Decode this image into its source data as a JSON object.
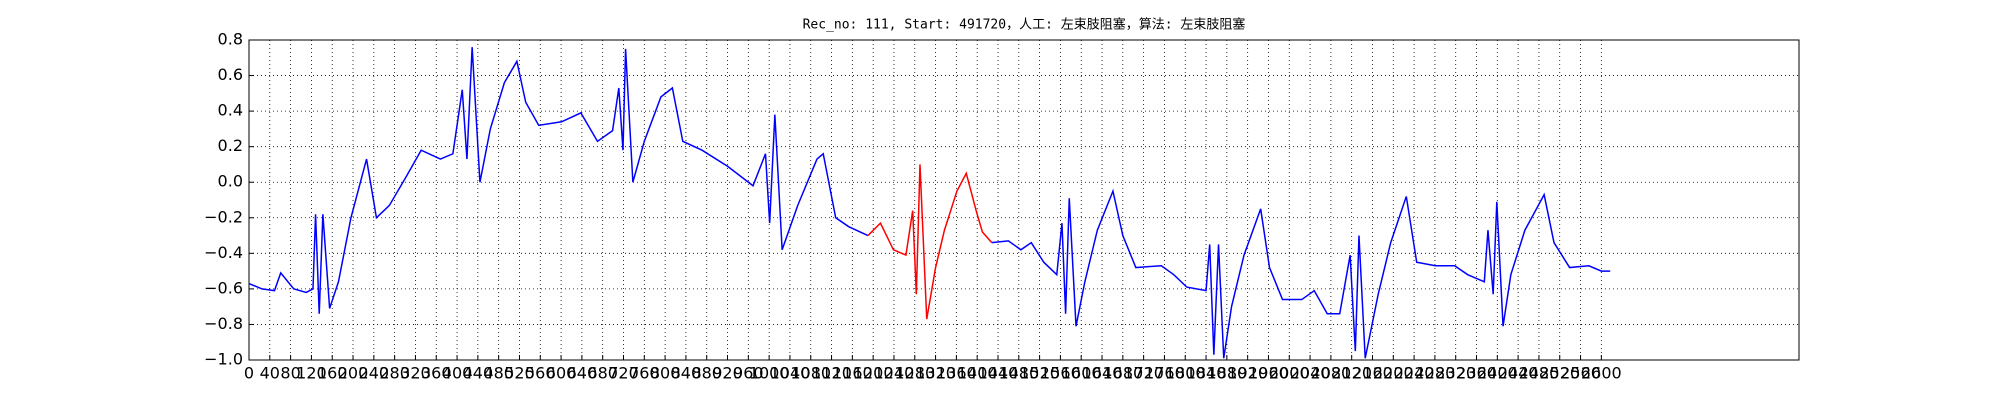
{
  "chart_data": {
    "type": "line",
    "title": "Rec_no: 111, Start: 491720，人工: 左束肢阻塞，算法: 左束肢阻塞",
    "xlim": [
      0,
      2980
    ],
    "ylim": [
      -1,
      0.8
    ],
    "xticks": [
      0,
      40,
      80,
      120,
      160,
      200,
      240,
      280,
      320,
      360,
      400,
      440,
      480,
      520,
      560,
      600,
      640,
      680,
      720,
      760,
      800,
      840,
      880,
      920,
      960,
      1000,
      1040,
      1080,
      1120,
      1160,
      1200,
      1240,
      1280,
      1320,
      1360,
      1400,
      1440,
      1480,
      1520,
      1560,
      1600,
      1640,
      1680,
      1720,
      1760,
      1800,
      1840,
      1880,
      1920,
      1960,
      2000,
      2040,
      2080,
      2120,
      2160,
      2200,
      2240,
      2280,
      2320,
      2360,
      2400,
      2440,
      2480,
      2520,
      2560,
      2600
    ],
    "yticks": [
      {
        "value": -1,
        "label": "−1.0"
      },
      {
        "value": -0.8,
        "label": "−0.8"
      },
      {
        "value": -0.6,
        "label": "−0.6"
      },
      {
        "value": -0.4,
        "label": "−0.4"
      },
      {
        "value": -0.2,
        "label": "−0.2"
      },
      {
        "value": 0,
        "label": "0.0"
      },
      0.2,
      0.4,
      0.6,
      0.8
    ],
    "grid": true,
    "series": [
      {
        "color": "#0000ff",
        "x": [
          0,
          25,
          49,
          61,
          86,
          110,
          123,
          128,
          135,
          142,
          155,
          172,
          196,
          226,
          245,
          270,
          302,
          331,
          368,
          392,
          410,
          419,
          429,
          444,
          464,
          491,
          515,
          532,
          557,
          601,
          638,
          670,
          699,
          711,
          719,
          724,
          738,
          760,
          792,
          814,
          834,
          871,
          920,
          969,
          993,
          1001,
          1011,
          1025,
          1055,
          1092,
          1104,
          1128,
          1153,
          1190
        ],
        "values": [
          -0.57,
          -0.6,
          -0.61,
          -0.51,
          -0.6,
          -0.62,
          -0.6,
          -0.18,
          -0.74,
          -0.18,
          -0.71,
          -0.56,
          -0.2,
          0.13,
          -0.2,
          -0.13,
          0.03,
          0.18,
          0.13,
          0.16,
          0.52,
          0.13,
          0.76,
          0.0,
          0.3,
          0.56,
          0.68,
          0.45,
          0.32,
          0.34,
          0.39,
          0.23,
          0.29,
          0.53,
          0.18,
          0.75,
          0.0,
          0.23,
          0.48,
          0.53,
          0.23,
          0.18,
          0.09,
          -0.02,
          0.16,
          -0.23,
          0.38,
          -0.38,
          -0.13,
          0.13,
          0.16,
          -0.2,
          -0.25,
          -0.3
        ]
      },
      {
        "color": "#ff0000",
        "x": [
          1190,
          1214,
          1239,
          1263,
          1276,
          1283,
          1290,
          1303,
          1320,
          1337,
          1361,
          1379,
          1398,
          1410,
          1428
        ],
        "values": [
          -0.3,
          -0.23,
          -0.38,
          -0.41,
          -0.16,
          -0.63,
          0.1,
          -0.77,
          -0.48,
          -0.27,
          -0.05,
          0.05,
          -0.16,
          -0.28,
          -0.34
        ]
      },
      {
        "color": "#0000ff",
        "x": [
          1428,
          1460,
          1484,
          1504,
          1528,
          1553,
          1563,
          1570,
          1577,
          1590,
          1607,
          1631,
          1661,
          1680,
          1705,
          1754,
          1778,
          1803,
          1840,
          1847,
          1855,
          1864,
          1874,
          1889,
          1913,
          1945,
          1962,
          1987,
          2024,
          2048,
          2073,
          2097,
          2117,
          2127,
          2134,
          2146,
          2171,
          2195,
          2225,
          2245,
          2281,
          2318,
          2343,
          2375,
          2382,
          2392,
          2399,
          2411,
          2426,
          2453,
          2490,
          2509,
          2539,
          2576,
          2600,
          2617
        ],
        "values": [
          -0.34,
          -0.33,
          -0.38,
          -0.34,
          -0.45,
          -0.52,
          -0.23,
          -0.74,
          -0.09,
          -0.81,
          -0.56,
          -0.27,
          -0.05,
          -0.3,
          -0.48,
          -0.47,
          -0.52,
          -0.59,
          -0.61,
          -0.35,
          -0.97,
          -0.35,
          -0.99,
          -0.7,
          -0.41,
          -0.15,
          -0.48,
          -0.66,
          -0.66,
          -0.61,
          -0.74,
          -0.74,
          -0.41,
          -0.95,
          -0.3,
          -0.99,
          -0.63,
          -0.34,
          -0.08,
          -0.45,
          -0.47,
          -0.47,
          -0.52,
          -0.56,
          -0.27,
          -0.63,
          -0.11,
          -0.81,
          -0.52,
          -0.27,
          -0.07,
          -0.34,
          -0.48,
          -0.47,
          -0.5,
          -0.5
        ]
      }
    ]
  }
}
